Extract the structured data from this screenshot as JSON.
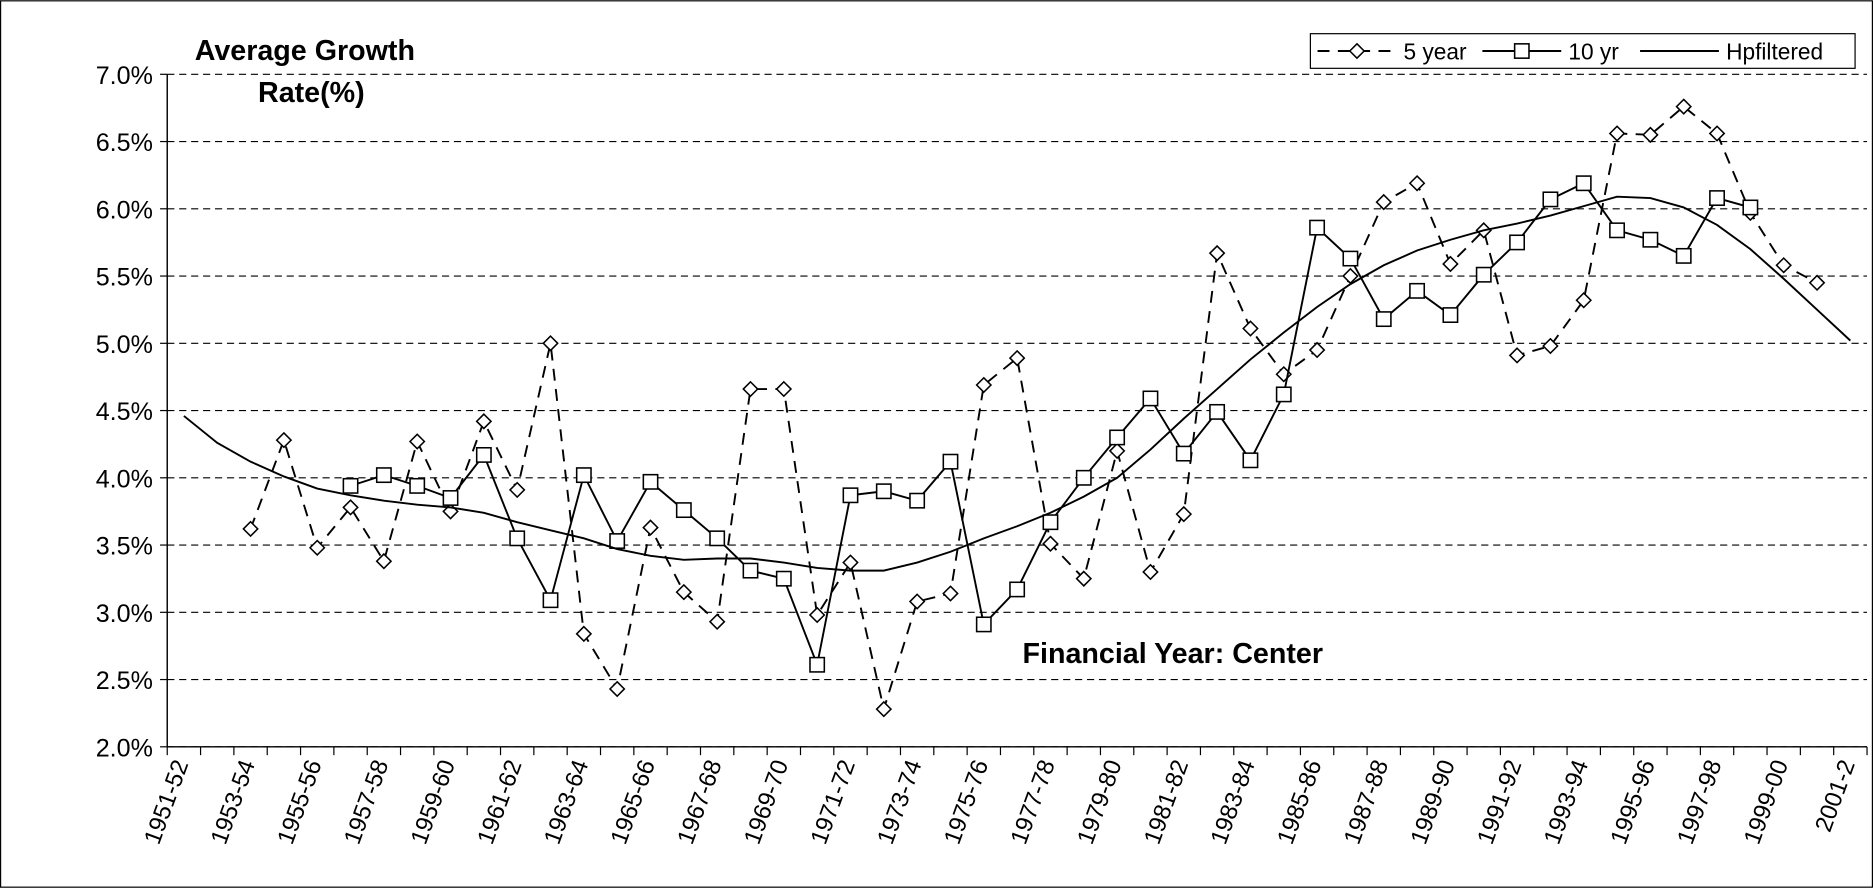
{
  "chart_data": {
    "type": "line",
    "title": [
      "Average Growth",
      "Rate(%)"
    ],
    "annotation": "Financial Year: Center",
    "categories": [
      "1951-52",
      null,
      "1953-54",
      null,
      "1955-56",
      null,
      "1957-58",
      null,
      "1959-60",
      null,
      "1961-62",
      null,
      "1963-64",
      null,
      "1965-66",
      null,
      "1967-68",
      null,
      "1969-70",
      null,
      "1971-72",
      null,
      "1973-74",
      null,
      "1975-76",
      null,
      "1977-78",
      null,
      "1979-80",
      null,
      "1981-82",
      null,
      "1983-84",
      null,
      "1985-86",
      null,
      "1987-88",
      null,
      "1989-90",
      null,
      "1991-92",
      null,
      "1993-94",
      null,
      "1995-96",
      null,
      "1997-98",
      null,
      "1999-00",
      null,
      "2001-2"
    ],
    "series": [
      {
        "name": "5 year",
        "color": "#000000",
        "dash": true,
        "marker": "diamond",
        "values": [
          null,
          null,
          3.62,
          4.28,
          3.48,
          3.78,
          3.38,
          4.27,
          3.75,
          4.42,
          3.91,
          5.0,
          2.84,
          2.43,
          3.63,
          3.15,
          2.93,
          4.66,
          4.66,
          2.98,
          3.37,
          2.28,
          3.08,
          3.14,
          4.69,
          4.89,
          3.51,
          3.25,
          4.2,
          3.3,
          3.73,
          5.67,
          5.11,
          4.77,
          4.95,
          5.5,
          6.05,
          6.19,
          5.59,
          5.84,
          4.91,
          4.98,
          5.32,
          6.56,
          6.55,
          6.76,
          6.56,
          5.97,
          5.58,
          5.45,
          null
        ]
      },
      {
        "name": "10 yr",
        "color": "#000000",
        "dash": false,
        "marker": "square",
        "values": [
          null,
          null,
          null,
          null,
          null,
          3.94,
          4.02,
          3.94,
          3.85,
          4.17,
          3.55,
          3.09,
          4.02,
          3.53,
          3.97,
          3.76,
          3.55,
          3.31,
          3.25,
          2.61,
          3.87,
          3.9,
          3.83,
          4.12,
          2.91,
          3.17,
          3.67,
          4.0,
          4.3,
          4.59,
          4.18,
          4.49,
          4.13,
          4.62,
          5.86,
          5.63,
          5.18,
          5.39,
          5.21,
          5.51,
          5.75,
          6.07,
          6.19,
          5.84,
          5.77,
          5.65,
          6.08,
          6.01,
          null,
          null,
          null
        ]
      },
      {
        "name": "Hpfiltered",
        "color": "#000000",
        "dash": false,
        "marker": "none",
        "values": [
          4.46,
          4.26,
          4.12,
          4.01,
          3.92,
          3.87,
          3.83,
          3.8,
          3.78,
          3.74,
          3.67,
          3.61,
          3.55,
          3.47,
          3.42,
          3.39,
          3.4,
          3.4,
          3.37,
          3.33,
          3.31,
          3.31,
          3.37,
          3.45,
          3.55,
          3.64,
          3.74,
          3.86,
          4.0,
          4.21,
          4.44,
          4.66,
          4.88,
          5.08,
          5.27,
          5.44,
          5.58,
          5.69,
          5.77,
          5.84,
          5.89,
          5.95,
          6.02,
          6.09,
          6.08,
          6.01,
          5.88,
          5.7,
          5.48,
          5.25,
          5.02
        ]
      }
    ],
    "ylim": [
      2.0,
      7.0
    ],
    "yticks": [
      {
        "value": 2.0,
        "label": "2.0%"
      },
      {
        "value": 2.5,
        "label": "2.5%"
      },
      {
        "value": 3.0,
        "label": "3.0%"
      },
      {
        "value": 3.5,
        "label": "3.5%"
      },
      {
        "value": 4.0,
        "label": "4.0%"
      },
      {
        "value": 4.5,
        "label": "4.5%"
      },
      {
        "value": 5.0,
        "label": "5.0%"
      },
      {
        "value": 5.5,
        "label": "5.5%"
      },
      {
        "value": 6.0,
        "label": "6.0%"
      },
      {
        "value": 6.5,
        "label": "6.5%"
      },
      {
        "value": 7.0,
        "label": "7.0%"
      }
    ],
    "grid": true,
    "legend": "top-right"
  }
}
